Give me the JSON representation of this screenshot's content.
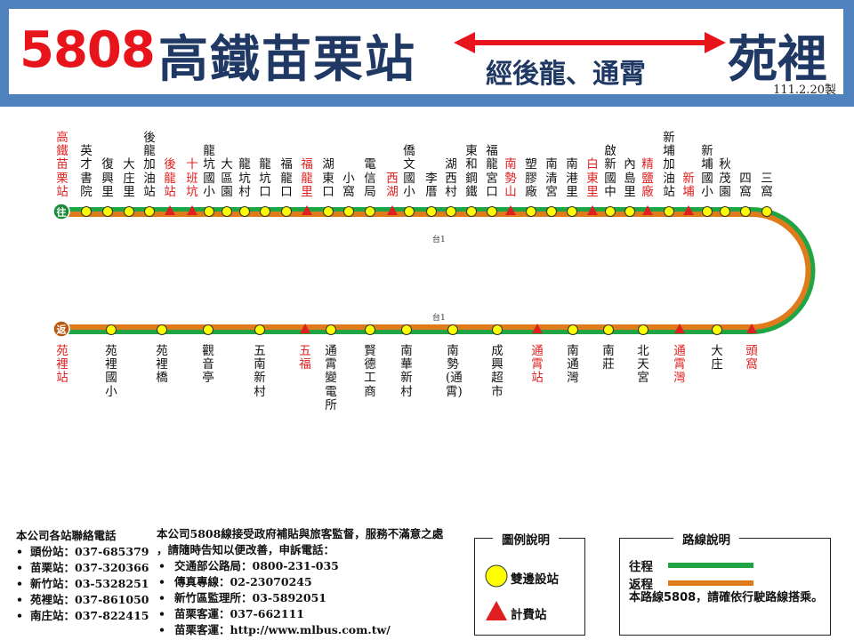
{
  "header": {
    "route_number": "5808",
    "origin": "高鐵苗栗站",
    "destination": "苑裡",
    "via": "經後龍、通霄",
    "date": "111.2.20製"
  },
  "colors": {
    "outbound": "#20a545",
    "return": "#e07b1c",
    "fare_marker": "#e02020",
    "stop_marker": "#ffff00"
  },
  "terminals": {
    "outbound_badge": "往",
    "return_badge": "返"
  },
  "road_labels": [
    "台1",
    "台1"
  ],
  "outbound_stops": [
    {
      "name": "高鐵苗栗站",
      "fare": true
    },
    {
      "name": "英才書院",
      "fare": false
    },
    {
      "name": "復興里",
      "fare": false
    },
    {
      "name": "大庄里",
      "fare": false
    },
    {
      "name": "後龍加油站",
      "fare": false
    },
    {
      "name": "後龍站",
      "fare": true
    },
    {
      "name": "十班坑",
      "fare": true
    },
    {
      "name": "龍坑國小",
      "fare": false
    },
    {
      "name": "大區園",
      "fare": false
    },
    {
      "name": "龍坑村",
      "fare": false
    },
    {
      "name": "龍坑口",
      "fare": false
    },
    {
      "name": "福龍口",
      "fare": false
    },
    {
      "name": "福龍里",
      "fare": true
    },
    {
      "name": "湖東口",
      "fare": false
    },
    {
      "name": "小窩",
      "fare": false
    },
    {
      "name": "電信局",
      "fare": false
    },
    {
      "name": "西湖",
      "fare": true
    },
    {
      "name": "僑文國小",
      "fare": false
    },
    {
      "name": "李厝",
      "fare": false
    },
    {
      "name": "湖西村",
      "fare": false
    },
    {
      "name": "東和鋼鐵",
      "fare": false
    },
    {
      "name": "福龍宮口",
      "fare": false
    },
    {
      "name": "南勢山",
      "fare": true
    },
    {
      "name": "塑膠廠",
      "fare": false
    },
    {
      "name": "南清宮",
      "fare": false
    },
    {
      "name": "南港里",
      "fare": false
    },
    {
      "name": "白東里",
      "fare": true
    },
    {
      "name": "啟新國中",
      "fare": false
    },
    {
      "name": "內島里",
      "fare": false
    },
    {
      "name": "精鹽廠",
      "fare": true
    },
    {
      "name": "新埔加油站",
      "fare": false
    },
    {
      "name": "新埔",
      "fare": true
    },
    {
      "name": "新埔國小",
      "fare": false
    },
    {
      "name": "秋茂園",
      "fare": false
    },
    {
      "name": "四窩",
      "fare": false
    },
    {
      "name": "三窩",
      "fare": false
    }
  ],
  "return_stops": [
    {
      "name": "苑裡站",
      "fare": true
    },
    {
      "name": "苑裡國小",
      "fare": false
    },
    {
      "name": "苑裡橋",
      "fare": false
    },
    {
      "name": "觀音亭",
      "fare": false
    },
    {
      "name": "五南新村",
      "fare": false
    },
    {
      "name": "五福",
      "fare": true
    },
    {
      "name": "通霄變電所",
      "fare": false
    },
    {
      "name": "賢德工商",
      "fare": false
    },
    {
      "name": "南華新村",
      "fare": false
    },
    {
      "name": "南勢(通霄)",
      "fare": false
    },
    {
      "name": "成興超市",
      "fare": false
    },
    {
      "name": "通霄站",
      "fare": true
    },
    {
      "name": "南通灣",
      "fare": false
    },
    {
      "name": "南莊",
      "fare": false
    },
    {
      "name": "北天宮",
      "fare": false
    },
    {
      "name": "通霄灣",
      "fare": true
    },
    {
      "name": "大庄",
      "fare": false
    },
    {
      "name": "頭窩",
      "fare": true
    }
  ],
  "contacts": {
    "title": "本公司各站聯絡電話",
    "items": [
      "頭份站：037-685379",
      "苗栗站：037-320366",
      "新竹站：03-5328251",
      "苑裡站：037-861050",
      "南庄站：037-822415"
    ]
  },
  "notice": {
    "line1": "本公司5808線接受政府補貼與旅客監督，服務不滿意之處",
    "line2": "，請隨時告知以便改善，申訴電話：",
    "items": [
      "交通部公路局：0800-231-035",
      "傳真專線：02-23070245",
      "新竹區監理所：03-5892051",
      "苗栗客運：037-662111",
      "苗栗客運：http://www.mlbus.com.tw/"
    ]
  },
  "legend": {
    "title": "圖例說明",
    "both_ways": "雙邊設站",
    "fare_stop": "計費站"
  },
  "route_info": {
    "title": "路線說明",
    "outbound": "往程",
    "return": "返程",
    "note": "本路線5808，請確依行駛路線搭乘。"
  }
}
